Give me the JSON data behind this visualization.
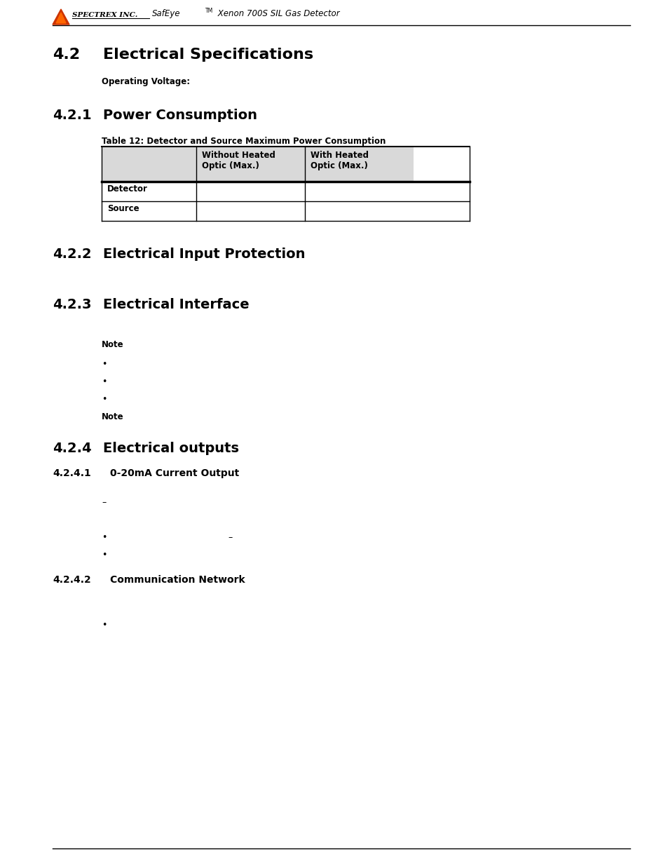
{
  "bg_color": "#ffffff",
  "page_width": 9.54,
  "page_height": 12.35,
  "header_logo_text": "SPECTREX INC.",
  "section_42": "4.2",
  "section_42_title": "Electrical Specifications",
  "operating_voltage_label": "Operating Voltage:",
  "section_421": "4.2.1",
  "section_421_title": "Power Consumption",
  "table_caption": "Table 12: Detector and Source Maximum Power Consumption",
  "table_col2_header": "Without Heated\nOptic (Max.)",
  "table_col3_header": "With Heated\nOptic (Max.)",
  "table_row1": "Detector",
  "table_row2": "Source",
  "section_422": "4.2.2",
  "section_422_title": "Electrical Input Protection",
  "section_423": "4.2.3",
  "section_423_title": "Electrical Interface",
  "note_label": "Note",
  "bullet_points_423": [
    "",
    "",
    ""
  ],
  "note_label2": "Note",
  "section_424": "4.2.4",
  "section_424_title": "Electrical outputs",
  "section_4241": "4.2.4.1",
  "section_4241_title": "0-20mA Current Output",
  "dash1": "–",
  "dash2": "–",
  "section_4242": "4.2.4.2",
  "section_4242_title": "Communication Network",
  "footer_line": true,
  "header_line_color": "#000000",
  "table_header_bg": "#d9d9d9",
  "table_border_color": "#000000",
  "font_color": "#000000"
}
